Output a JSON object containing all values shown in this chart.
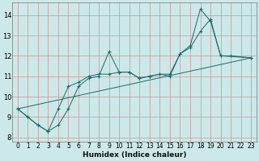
{
  "xlabel": "Humidex (Indice chaleur)",
  "bg_color": "#cce8e8",
  "grid_color_major": "#d0a0a0",
  "line_color": "#1a6b6b",
  "xlim": [
    -0.5,
    23.5
  ],
  "ylim": [
    7.8,
    14.6
  ],
  "yticks": [
    8,
    9,
    10,
    11,
    12,
    13,
    14
  ],
  "xticks": [
    0,
    1,
    2,
    3,
    4,
    5,
    6,
    7,
    8,
    9,
    10,
    11,
    12,
    13,
    14,
    15,
    16,
    17,
    18,
    19,
    20,
    21,
    22,
    23
  ],
  "curve1_x": [
    0,
    1,
    2,
    3,
    4,
    5,
    6,
    7,
    8,
    9,
    10,
    11,
    12,
    13,
    14,
    15,
    16,
    17,
    18,
    19,
    20,
    21,
    23
  ],
  "curve1_y": [
    9.4,
    9.0,
    8.6,
    8.3,
    8.6,
    9.4,
    10.5,
    10.9,
    11.0,
    12.2,
    11.2,
    11.2,
    10.9,
    11.0,
    11.1,
    11.0,
    12.1,
    12.5,
    14.3,
    13.7,
    12.0,
    12.0,
    11.9
  ],
  "curve2_x": [
    0,
    1,
    2,
    3,
    4,
    5,
    6,
    7,
    8,
    9,
    10,
    11,
    12,
    13,
    14,
    15,
    16,
    17,
    18,
    19,
    20,
    23
  ],
  "curve2_y": [
    9.4,
    9.0,
    8.6,
    8.3,
    9.4,
    10.5,
    10.7,
    11.0,
    11.1,
    11.1,
    11.2,
    11.2,
    10.9,
    11.0,
    11.1,
    11.1,
    12.1,
    12.4,
    13.2,
    13.8,
    12.0,
    11.9
  ],
  "curve3_x": [
    0,
    23
  ],
  "curve3_y": [
    9.4,
    11.9
  ],
  "xlabel_fontsize": 6.5,
  "tick_fontsize": 5.5
}
